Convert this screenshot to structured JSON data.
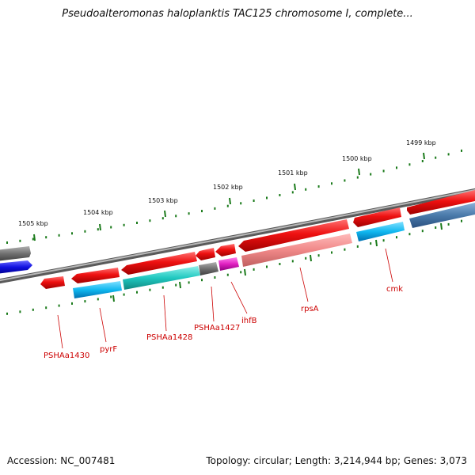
{
  "title": "Pseudoalteromonas haloplanktis TAC125 chromosome I, complete...",
  "footer": {
    "accession": "Accession: NC_007481",
    "topology": "Topology: circular; Length: 3,214,944 bp; Genes: 3,073"
  },
  "scale_ticks": [
    "1505 kbp",
    "1504 kbp",
    "1503 kbp",
    "1502 kbp",
    "1501 kbp",
    "1500 kbp",
    "1499 kbp"
  ],
  "gene_labels": [
    "PSHAa1430",
    "pyrF",
    "PSHAa1428",
    "PSHAa1427",
    "ihfB",
    "rpsA",
    "cmk"
  ],
  "colors": {
    "forward_gene": "#ee1111",
    "pink_gene": "#f08888",
    "cyan_gene": "#10b8f0",
    "teal_gene": "#20c8c0",
    "blue_gene": "#1010e0",
    "grey_gene": "#707070",
    "magenta_gene": "#e020c0",
    "steel_gene": "#4a7aaa",
    "backbone": "#888888",
    "tick_green": "#1a7a1a",
    "label_red": "#cc0000"
  }
}
